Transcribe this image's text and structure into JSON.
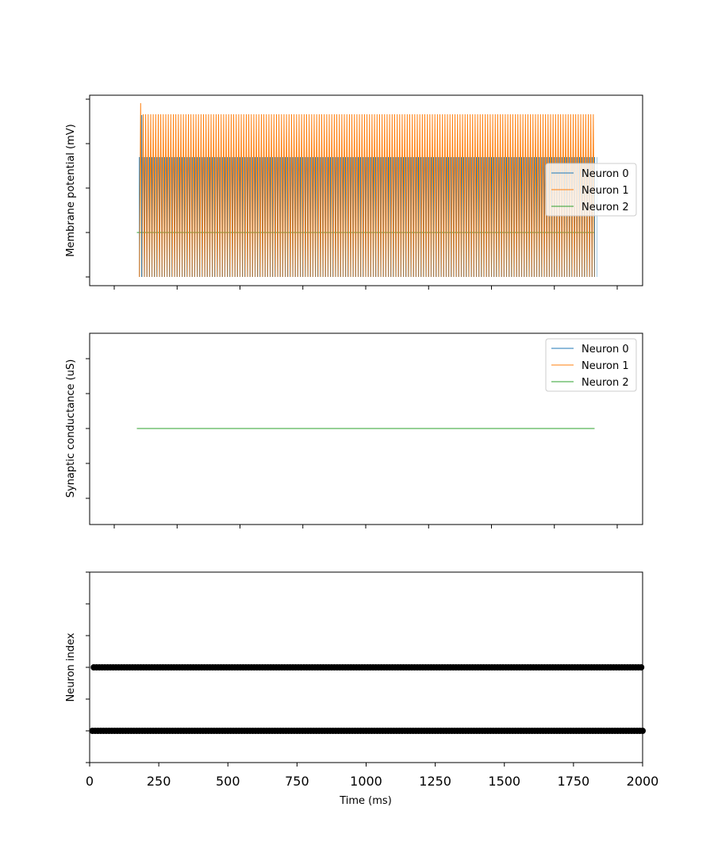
{
  "chart_data": [
    {
      "type": "line",
      "ylabel": "Membrane potential (mV)",
      "xlim": [
        0,
        2000
      ],
      "ylim_fraction_note": "",
      "legend": {
        "placement": "right",
        "entries": [
          "Neuron 0",
          "Neuron 1",
          "Neuron 2"
        ]
      },
      "series": [
        {
          "name": "Neuron 0",
          "color": "#1f77b4",
          "spiking": true,
          "t_start": 100,
          "t_end": 1910,
          "period": 10
        },
        {
          "name": "Neuron 1",
          "color": "#ff7f0e",
          "spiking": true,
          "t_start": 100,
          "t_end": 1910,
          "period": 10
        },
        {
          "name": "Neuron 2",
          "color": "#2ca02c",
          "spiking": false,
          "t_start": 90,
          "t_end": 1910
        }
      ]
    },
    {
      "type": "line",
      "ylabel": "Synaptic conductance (uS)",
      "xlim": [
        0,
        2000
      ],
      "legend": {
        "placement": "top-right",
        "entries": [
          "Neuron 0",
          "Neuron 1",
          "Neuron 2"
        ]
      },
      "series": [
        {
          "name": "Neuron 0",
          "color": "#1f77b4",
          "t_start": 90,
          "t_end": 1910
        },
        {
          "name": "Neuron 1",
          "color": "#ff7f0e",
          "t_start": 90,
          "t_end": 1910
        },
        {
          "name": "Neuron 2",
          "color": "#2ca02c",
          "t_start": 90,
          "t_end": 1910
        }
      ]
    },
    {
      "type": "scatter",
      "xlabel": "Time (ms)",
      "ylabel": "Neuron index",
      "xlim": [
        0,
        2000
      ],
      "x_ticks": [
        "0",
        "250",
        "500",
        "750",
        "1000",
        "1250",
        "1500",
        "1750",
        "2000"
      ],
      "x_tick_values": [
        0,
        250,
        500,
        750,
        1000,
        1250,
        1500,
        1750,
        2000
      ],
      "series": [
        {
          "neuron_index": 0,
          "t_start": 10,
          "t_end": 2000,
          "interval": 10,
          "color": "#000000"
        },
        {
          "neuron_index": 1,
          "t_start": 15,
          "t_end": 2000,
          "interval": 10,
          "color": "#000000"
        }
      ]
    }
  ]
}
